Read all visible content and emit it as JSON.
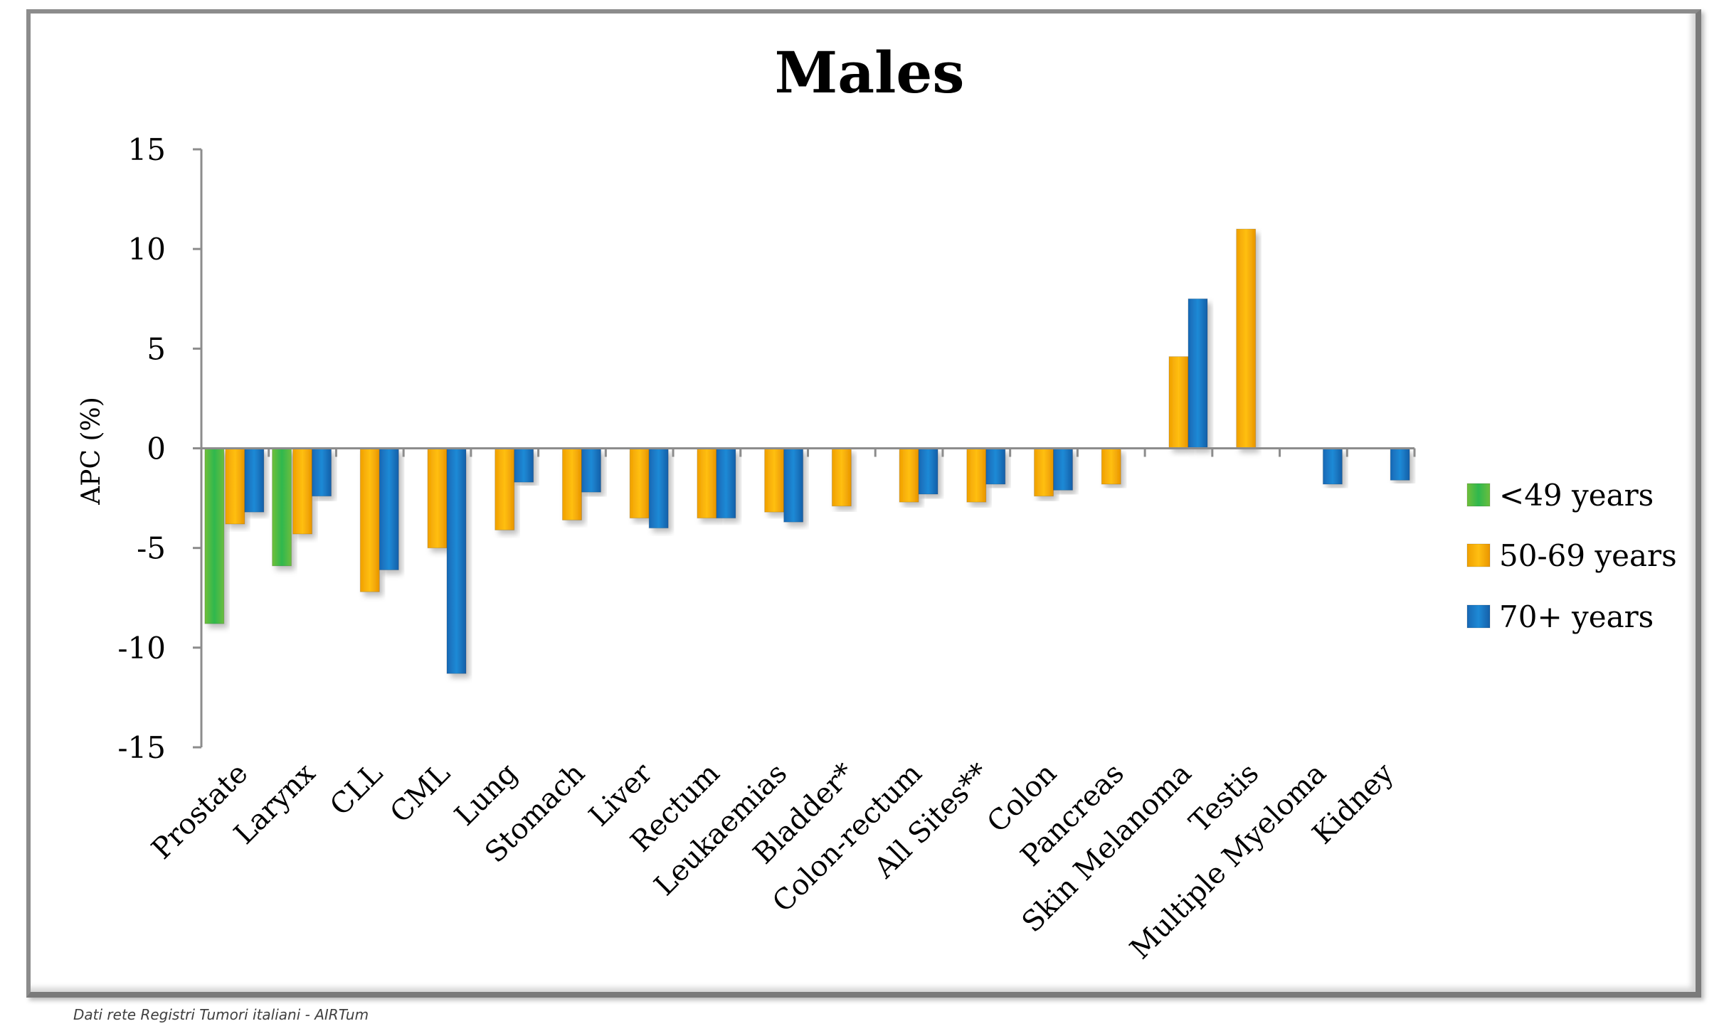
{
  "chart_data": {
    "type": "bar",
    "title": "Males",
    "xlabel": "",
    "ylabel": "APC (%)",
    "ylim": [
      -15,
      15
    ],
    "yticks": [
      15,
      10,
      5,
      0,
      -5,
      -10,
      -15
    ],
    "ytick_labels": [
      "15",
      "10",
      "5",
      "0",
      "-5",
      "-10",
      "-15"
    ],
    "grid": false,
    "legend_position": "right",
    "categories": [
      "Prostate",
      "Larynx",
      "CLL",
      "CML",
      "Lung",
      "Stomach",
      "Liver",
      "Rectum",
      "Leukaemias",
      "Bladder*",
      "Colon-rectum",
      "All Sites**",
      "Colon",
      "Pancreas",
      "Skin Melanoma",
      "Testis",
      "Multiple Myeloma",
      "Kidney"
    ],
    "series": [
      {
        "name": "<49 years",
        "color": "#5cbf45",
        "values": [
          -8.8,
          -5.9,
          null,
          null,
          null,
          null,
          null,
          null,
          null,
          null,
          null,
          null,
          null,
          null,
          null,
          null,
          null,
          null
        ]
      },
      {
        "name": "50-69 years",
        "color": "#f5a300",
        "values": [
          -3.8,
          -4.3,
          -7.2,
          -5.0,
          -4.1,
          -3.6,
          -3.5,
          -3.5,
          -3.2,
          -2.9,
          -2.7,
          -2.7,
          -2.4,
          -1.8,
          4.6,
          11.0,
          null,
          null
        ]
      },
      {
        "name": "70+ years",
        "color": "#1a74c4",
        "values": [
          -3.2,
          -2.4,
          -6.1,
          -11.3,
          -1.7,
          -2.2,
          -4.0,
          -3.5,
          -3.7,
          null,
          -2.3,
          -1.8,
          -2.1,
          null,
          7.5,
          null,
          -1.8,
          -1.6
        ]
      }
    ]
  },
  "footer": "Dati rete Registri Tumori italiani - AIRTum"
}
